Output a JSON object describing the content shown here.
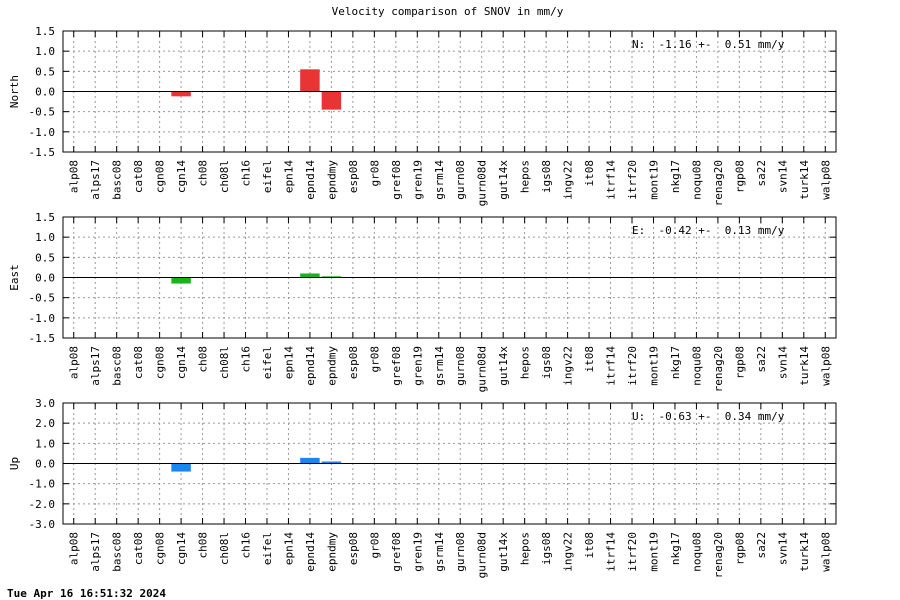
{
  "title": "Velocity comparison of SNOV in mm/y",
  "footer_timestamp": "Tue Apr 16 16:51:32 2024",
  "chart_data": [
    {
      "type": "bar",
      "ylabel": "North",
      "ylim": [
        -1.5,
        1.5
      ],
      "yticks": [
        1.5,
        1.0,
        0.5,
        0.0,
        -0.5,
        -1.0,
        -1.5
      ],
      "yticklabels": [
        "1.5",
        "1.0",
        "0.5",
        "0.0",
        "-0.5",
        "-1.0",
        "-1.5"
      ],
      "grid": true,
      "bar_color": "#e83434",
      "annotation": "N:  -1.16 +-  0.51 mm/y",
      "categories": [
        "alp08",
        "alps17",
        "basc08",
        "cat08",
        "cgn08",
        "cgn14",
        "ch08",
        "ch08l",
        "ch16",
        "eifel",
        "epn14",
        "epnd14",
        "epndmy",
        "esp08",
        "gr08",
        "gref08",
        "gren19",
        "gsrm14",
        "gurn08",
        "gurn08d",
        "gut14x",
        "hepos",
        "igs08",
        "ingv22",
        "it08",
        "itrf14",
        "itrf20",
        "mont19",
        "nkg17",
        "noqu08",
        "renag20",
        "rgp08",
        "sa22",
        "svn14",
        "turk14",
        "walp08"
      ],
      "values": [
        0,
        0,
        0,
        0,
        0,
        -0.12,
        0,
        0,
        0,
        0,
        0,
        0.55,
        -0.45,
        0,
        0,
        0,
        0,
        0,
        0,
        0,
        0,
        0,
        0,
        0,
        0,
        0,
        0,
        0,
        0,
        0,
        0,
        0,
        0,
        0,
        0,
        0
      ]
    },
    {
      "type": "bar",
      "ylabel": "East",
      "ylim": [
        -1.5,
        1.5
      ],
      "yticks": [
        1.5,
        1.0,
        0.5,
        0.0,
        -0.5,
        -1.0,
        -1.5
      ],
      "yticklabels": [
        "1.5",
        "1.0",
        "0.5",
        "0.0",
        "-0.5",
        "-1.0",
        "-1.5"
      ],
      "grid": true,
      "bar_color": "#18b418",
      "annotation": "E:  -0.42 +-  0.13 mm/y",
      "categories": [
        "alp08",
        "alps17",
        "basc08",
        "cat08",
        "cgn08",
        "cgn14",
        "ch08",
        "ch08l",
        "ch16",
        "eifel",
        "epn14",
        "epnd14",
        "epndmy",
        "esp08",
        "gr08",
        "gref08",
        "gren19",
        "gsrm14",
        "gurn08",
        "gurn08d",
        "gut14x",
        "hepos",
        "igs08",
        "ingv22",
        "it08",
        "itrf14",
        "itrf20",
        "mont19",
        "nkg17",
        "noqu08",
        "renag20",
        "rgp08",
        "sa22",
        "svn14",
        "turk14",
        "walp08"
      ],
      "values": [
        0,
        0,
        0,
        0,
        0,
        -0.15,
        0,
        0,
        0,
        0,
        0,
        0.1,
        0.03,
        0,
        0,
        0,
        0,
        0,
        0,
        0,
        0,
        0,
        0,
        0,
        0,
        0,
        0,
        0,
        0,
        0,
        0,
        0,
        0,
        0,
        0,
        0
      ]
    },
    {
      "type": "bar",
      "ylabel": "Up",
      "ylim": [
        -3.0,
        3.0
      ],
      "yticks": [
        3.0,
        2.0,
        1.0,
        0.0,
        -1.0,
        -2.0,
        -3.0
      ],
      "yticklabels": [
        "3.0",
        "2.0",
        "1.0",
        "0.0",
        "-1.0",
        "-2.0",
        "-3.0"
      ],
      "grid": true,
      "bar_color": "#1a86f0",
      "annotation": "U:  -0.63 +-  0.34 mm/y",
      "categories": [
        "alp08",
        "alps17",
        "basc08",
        "cat08",
        "cgn08",
        "cgn14",
        "ch08",
        "ch08l",
        "ch16",
        "eifel",
        "epn14",
        "epnd14",
        "epndmy",
        "esp08",
        "gr08",
        "gref08",
        "gren19",
        "gsrm14",
        "gurn08",
        "gurn08d",
        "gut14x",
        "hepos",
        "igs08",
        "ingv22",
        "it08",
        "itrf14",
        "itrf20",
        "mont19",
        "nkg17",
        "noqu08",
        "renag20",
        "rgp08",
        "sa22",
        "svn14",
        "turk14",
        "walp08"
      ],
      "values": [
        0,
        0,
        0,
        0,
        0,
        -0.4,
        0,
        0,
        0,
        0,
        0,
        0.28,
        0.1,
        0,
        0,
        0,
        0,
        0,
        0,
        0,
        0,
        0,
        0,
        0,
        0,
        0,
        0,
        0,
        0,
        0,
        0,
        0,
        0,
        0,
        0,
        0
      ]
    }
  ]
}
